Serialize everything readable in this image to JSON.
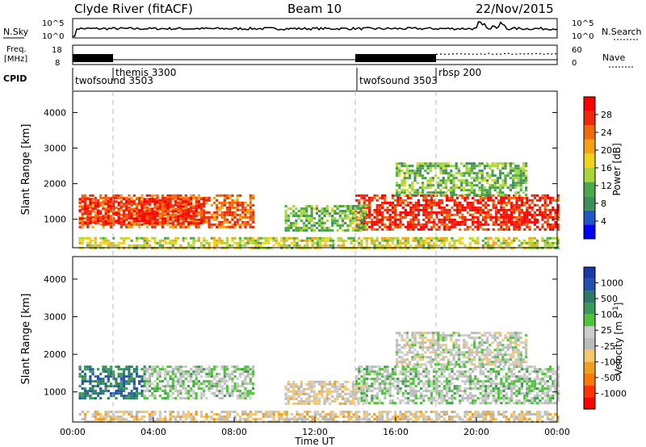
{
  "header": {
    "station": "Clyde River (fitACF)",
    "beam": "Beam 10",
    "date": "22/Nov/2015"
  },
  "noise_panel": {
    "left_label": "N.Sky",
    "right_label": "N.Search",
    "ytick_left": [
      "10^5",
      "10^0"
    ],
    "ytick_right": [
      "10^5",
      "10^0"
    ]
  },
  "freq_panel": {
    "left_label_top": "Freq.",
    "left_label_unit": "[MHz]",
    "ytick_left": [
      "18",
      "8"
    ],
    "right_label": "Nave",
    "ytick_right": [
      "60",
      "0"
    ]
  },
  "cpid_panel": {
    "label": "CPID",
    "programs": [
      {
        "name": "twofsound 3503",
        "start": "00:00"
      },
      {
        "name": "themis 3300",
        "start": "02:00"
      },
      {
        "name": "twofsound 3503",
        "start": "14:00"
      },
      {
        "name": "rbsp 200",
        "start": "18:00"
      }
    ]
  },
  "colors": {
    "power_scale": [
      "#0000ff",
      "#2255c8",
      "#3f8f5a",
      "#4ca84a",
      "#a8d63a",
      "#f2d21b",
      "#f6a014",
      "#f06a0a",
      "#ee2a0a",
      "#ff0000"
    ],
    "velocity_scale": [
      "#ff0000",
      "#ff3300",
      "#ff7a00",
      "#f0a020",
      "#f5c66a",
      "#bbbbbb",
      "#cccccc",
      "#4fc33a",
      "#3e9a5a",
      "#2e7a6a",
      "#2250b0",
      "#1a3aa8"
    ]
  },
  "chart_data": [
    {
      "type": "heatmap",
      "panel": "power",
      "ylabel": "Slant Range [km]",
      "ytick_labels": [
        "1000",
        "2000",
        "3000",
        "4000"
      ],
      "ylim": [
        200,
        4600
      ],
      "xlim_hours": [
        0,
        24
      ],
      "colorbar": {
        "label": "Power [dB]",
        "ticks": [
          "4",
          "8",
          "12",
          "16",
          "20",
          "24",
          "28"
        ],
        "range": [
          0,
          32
        ]
      },
      "patches": [
        {
          "x0": 0.3,
          "x1": 9.0,
          "y0": 800,
          "y1": 1700,
          "value": 24
        },
        {
          "x0": 0.3,
          "x1": 6.5,
          "y0": 900,
          "y1": 1600,
          "value": 28
        },
        {
          "x0": 14.0,
          "x1": 24.0,
          "y0": 700,
          "y1": 1700,
          "value": 28
        },
        {
          "x0": 10.5,
          "x1": 14.5,
          "y0": 700,
          "y1": 1400,
          "value": 12
        },
        {
          "x0": 16.0,
          "x1": 22.5,
          "y0": 1700,
          "y1": 2600,
          "value": 12
        },
        {
          "x0": 0.3,
          "x1": 24.0,
          "y0": 200,
          "y1": 500,
          "value": 16
        }
      ]
    },
    {
      "type": "heatmap",
      "panel": "velocity",
      "ylabel": "Slant Range [km]",
      "ytick_labels": [
        "1000",
        "2000",
        "3000",
        "4000"
      ],
      "ylim": [
        200,
        4600
      ],
      "xlim_hours": [
        0,
        24
      ],
      "xtick_labels": [
        "00:00",
        "04:00",
        "08:00",
        "12:00",
        "16:00",
        "20:00",
        "00:00"
      ],
      "xlabel": "Time UT",
      "colorbar": {
        "label": "Velocity [m s-1]",
        "ticks": [
          "1000",
          "500",
          "100",
          "25",
          "-25",
          "-100",
          "-500",
          "-1000"
        ],
        "range": [
          -1200,
          1200
        ]
      },
      "patches": [
        {
          "x0": 0.3,
          "x1": 3.5,
          "y0": 800,
          "y1": 1700,
          "value": 700
        },
        {
          "x0": 3.5,
          "x1": 9.0,
          "y0": 800,
          "y1": 1700,
          "value": 150
        },
        {
          "x0": 10.5,
          "x1": 14.5,
          "y0": 700,
          "y1": 1300,
          "value": -150
        },
        {
          "x0": 14.0,
          "x1": 24.0,
          "y0": 700,
          "y1": 1700,
          "value": 150
        },
        {
          "x0": 16.0,
          "x1": 22.5,
          "y0": 1700,
          "y1": 2600,
          "value": 0
        },
        {
          "x0": 0.3,
          "x1": 24.0,
          "y0": 200,
          "y1": 500,
          "value": -200
        }
      ]
    }
  ]
}
